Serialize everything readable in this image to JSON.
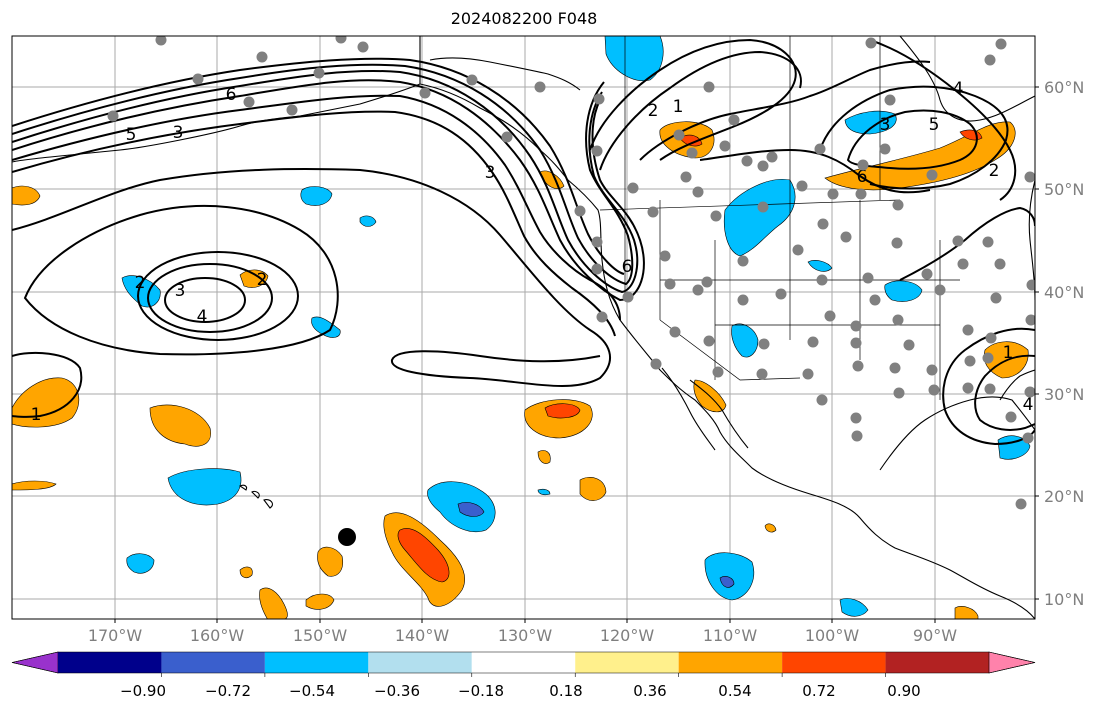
{
  "title": "2024082200 F048",
  "lat_labels": [
    "60°N",
    "50°N",
    "40°N",
    "30°N",
    "20°N",
    "10°N"
  ],
  "lon_labels": [
    "170°W",
    "160°W",
    "150°W",
    "140°W",
    "130°W",
    "120°W",
    "110°W",
    "100°W",
    "90°W"
  ],
  "colorbar": {
    "ticks": [
      "−0.90",
      "−0.72",
      "−0.54",
      "−0.36",
      "−0.18",
      "0.18",
      "0.36",
      "0.54",
      "0.72",
      "0.90"
    ],
    "colors": [
      "#9932cc",
      "#00008b",
      "#3a5fcd",
      "#00bfff",
      "#b2dfee",
      "#ffffff",
      "#fff08c",
      "#ffa500",
      "#ff4500",
      "#b22222",
      "#ff82ab"
    ]
  },
  "contour_labels": [
    "6",
    "5",
    "3",
    "2",
    "1",
    "4",
    "2",
    "3",
    "6",
    "3",
    "2",
    "1",
    "4",
    "5",
    "6",
    "2",
    "1",
    "3",
    "4"
  ]
}
